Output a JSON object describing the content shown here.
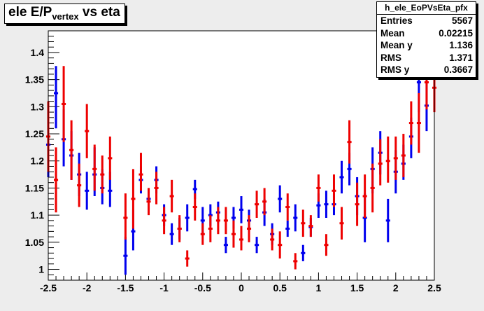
{
  "title": {
    "main": "ele E/P",
    "sub": "vertex",
    "rest": " vs eta"
  },
  "stats": {
    "name": "h_ele_EoPVsEta_pfx",
    "rows": [
      {
        "key": "Entries",
        "value": "5567"
      },
      {
        "key": "Mean",
        "value": "0.02215"
      },
      {
        "key": "Mean y",
        "value": "1.136"
      },
      {
        "key": "RMS",
        "value": "1.371"
      },
      {
        "key": "RMS y",
        "value": "0.3667"
      }
    ]
  },
  "colors": {
    "blue": "#0000ee",
    "red": "#ee0000",
    "frame": "#000000"
  },
  "chart_data": {
    "type": "scatter",
    "xlim": [
      -2.5,
      2.5
    ],
    "ylim": [
      0.98,
      1.44
    ],
    "x_ticks": [
      -2.5,
      -2,
      -1.5,
      -1,
      -0.5,
      0,
      0.5,
      1,
      1.5,
      2,
      2.5
    ],
    "x_tick_labels": [
      "-2.5",
      "-2",
      "-1.5",
      "-1",
      "-0.5",
      "0",
      "0.5",
      "1",
      "1.5",
      "2",
      "2.5"
    ],
    "y_ticks": [
      1,
      1.05,
      1.1,
      1.15,
      1.2,
      1.25,
      1.3,
      1.35,
      1.4
    ],
    "y_tick_labels": [
      "1",
      "1.05",
      "1.1",
      "1.15",
      "1.2",
      "1.25",
      "1.3",
      "1.35",
      "1.4"
    ],
    "bin_width": 0.1,
    "series": [
      {
        "color": "blue",
        "points": [
          {
            "x": -2.5,
            "y": 1.23,
            "lo": 1.17,
            "hi": 1.295
          },
          {
            "x": -2.4,
            "y": 1.325,
            "lo": 1.26,
            "hi": 1.375
          },
          {
            "x": -2.3,
            "y": 1.24,
            "lo": 1.19,
            "hi": 1.295
          },
          {
            "x": -2.2,
            "y": 1.21,
            "lo": 1.165,
            "hi": 1.255
          },
          {
            "x": -2.1,
            "y": 1.175,
            "lo": 1.135,
            "hi": 1.215
          },
          {
            "x": -2.0,
            "y": 1.145,
            "lo": 1.11,
            "hi": 1.18
          },
          {
            "x": -1.9,
            "y": 1.175,
            "lo": 1.135,
            "hi": 1.225
          },
          {
            "x": -1.8,
            "y": 1.15,
            "lo": 1.12,
            "hi": 1.185
          },
          {
            "x": -1.7,
            "y": 1.145,
            "lo": 1.115,
            "hi": 1.18
          },
          {
            "x": -1.5,
            "y": 1.025,
            "lo": 0.99,
            "hi": 1.06
          },
          {
            "x": -1.4,
            "y": 1.07,
            "lo": 1.035,
            "hi": 1.11
          },
          {
            "x": -1.3,
            "y": 1.165,
            "lo": 1.14,
            "hi": 1.19
          },
          {
            "x": -1.2,
            "y": 1.13,
            "lo": 1.11,
            "hi": 1.15
          },
          {
            "x": -1.1,
            "y": 1.165,
            "lo": 1.14,
            "hi": 1.19
          },
          {
            "x": -1.0,
            "y": 1.1,
            "lo": 1.08,
            "hi": 1.12
          },
          {
            "x": -0.9,
            "y": 1.065,
            "lo": 1.045,
            "hi": 1.085
          },
          {
            "x": -0.8,
            "y": 1.075,
            "lo": 1.055,
            "hi": 1.095
          },
          {
            "x": -0.7,
            "y": 1.095,
            "lo": 1.07,
            "hi": 1.12
          },
          {
            "x": -0.6,
            "y": 1.148,
            "lo": 1.13,
            "hi": 1.165
          },
          {
            "x": -0.5,
            "y": 1.09,
            "lo": 1.065,
            "hi": 1.115
          },
          {
            "x": -0.4,
            "y": 1.1,
            "lo": 1.08,
            "hi": 1.12
          },
          {
            "x": -0.3,
            "y": 1.105,
            "lo": 1.085,
            "hi": 1.125
          },
          {
            "x": -0.2,
            "y": 1.045,
            "lo": 1.03,
            "hi": 1.06
          },
          {
            "x": -0.1,
            "y": 1.095,
            "lo": 1.075,
            "hi": 1.115
          },
          {
            "x": 0.0,
            "y": 1.11,
            "lo": 1.085,
            "hi": 1.135
          },
          {
            "x": 0.1,
            "y": 1.09,
            "lo": 1.07,
            "hi": 1.11
          },
          {
            "x": 0.2,
            "y": 1.045,
            "lo": 1.03,
            "hi": 1.06
          },
          {
            "x": 0.3,
            "y": 1.105,
            "lo": 1.08,
            "hi": 1.13
          },
          {
            "x": 0.4,
            "y": 1.065,
            "lo": 1.045,
            "hi": 1.085
          },
          {
            "x": 0.5,
            "y": 1.13,
            "lo": 1.105,
            "hi": 1.155
          },
          {
            "x": 0.6,
            "y": 1.075,
            "lo": 1.06,
            "hi": 1.09
          },
          {
            "x": 0.7,
            "y": 1.095,
            "lo": 1.07,
            "hi": 1.12
          },
          {
            "x": 0.8,
            "y": 1.03,
            "lo": 1.015,
            "hi": 1.045
          },
          {
            "x": 0.9,
            "y": 1.078,
            "lo": 1.06,
            "hi": 1.095
          },
          {
            "x": 1.0,
            "y": 1.118,
            "lo": 1.095,
            "hi": 1.14
          },
          {
            "x": 1.1,
            "y": 1.12,
            "lo": 1.095,
            "hi": 1.145
          },
          {
            "x": 1.2,
            "y": 1.12,
            "lo": 1.1,
            "hi": 1.14
          },
          {
            "x": 1.3,
            "y": 1.17,
            "lo": 1.14,
            "hi": 1.2
          },
          {
            "x": 1.4,
            "y": 1.185,
            "lo": 1.155,
            "hi": 1.215
          },
          {
            "x": 1.5,
            "y": 1.135,
            "lo": 1.1,
            "hi": 1.17
          },
          {
            "x": 1.6,
            "y": 1.095,
            "lo": 1.05,
            "hi": 1.14
          },
          {
            "x": 1.7,
            "y": 1.185,
            "lo": 1.14,
            "hi": 1.225
          },
          {
            "x": 1.8,
            "y": 1.215,
            "lo": 1.175,
            "hi": 1.255
          },
          {
            "x": 1.9,
            "y": 1.09,
            "lo": 1.05,
            "hi": 1.13
          },
          {
            "x": 2.0,
            "y": 1.18,
            "lo": 1.14,
            "hi": 1.22
          },
          {
            "x": 2.1,
            "y": 1.195,
            "lo": 1.165,
            "hi": 1.23
          },
          {
            "x": 2.2,
            "y": 1.245,
            "lo": 1.205,
            "hi": 1.28
          },
          {
            "x": 2.3,
            "y": 1.345,
            "lo": 1.29,
            "hi": 1.4
          },
          {
            "x": 2.4,
            "y": 1.302,
            "lo": 1.255,
            "hi": 1.345
          },
          {
            "x": 2.5,
            "y": 1.355,
            "lo": 1.3,
            "hi": 1.41
          }
        ]
      },
      {
        "color": "red",
        "points": [
          {
            "x": -2.5,
            "y": 1.245,
            "lo": 1.18,
            "hi": 1.31
          },
          {
            "x": -2.4,
            "y": 1.165,
            "lo": 1.105,
            "hi": 1.225
          },
          {
            "x": -2.3,
            "y": 1.305,
            "lo": 1.235,
            "hi": 1.375
          },
          {
            "x": -2.2,
            "y": 1.22,
            "lo": 1.165,
            "hi": 1.275
          },
          {
            "x": -2.1,
            "y": 1.155,
            "lo": 1.115,
            "hi": 1.195
          },
          {
            "x": -2.0,
            "y": 1.255,
            "lo": 1.205,
            "hi": 1.305
          },
          {
            "x": -1.9,
            "y": 1.185,
            "lo": 1.145,
            "hi": 1.23
          },
          {
            "x": -1.8,
            "y": 1.175,
            "lo": 1.14,
            "hi": 1.21
          },
          {
            "x": -1.7,
            "y": 1.205,
            "lo": 1.165,
            "hi": 1.245
          },
          {
            "x": -1.5,
            "y": 1.095,
            "lo": 1.055,
            "hi": 1.14
          },
          {
            "x": -1.4,
            "y": 1.13,
            "lo": 1.075,
            "hi": 1.185
          },
          {
            "x": -1.3,
            "y": 1.175,
            "lo": 1.145,
            "hi": 1.215
          },
          {
            "x": -1.2,
            "y": 1.125,
            "lo": 1.1,
            "hi": 1.15
          },
          {
            "x": -1.1,
            "y": 1.15,
            "lo": 1.12,
            "hi": 1.18
          },
          {
            "x": -1.0,
            "y": 1.09,
            "lo": 1.065,
            "hi": 1.115
          },
          {
            "x": -0.9,
            "y": 1.135,
            "lo": 1.105,
            "hi": 1.165
          },
          {
            "x": -0.8,
            "y": 1.075,
            "lo": 1.05,
            "hi": 1.1
          },
          {
            "x": -0.7,
            "y": 1.02,
            "lo": 1.005,
            "hi": 1.035
          },
          {
            "x": -0.6,
            "y": 1.115,
            "lo": 1.09,
            "hi": 1.14
          },
          {
            "x": -0.5,
            "y": 1.065,
            "lo": 1.045,
            "hi": 1.085
          },
          {
            "x": -0.4,
            "y": 1.075,
            "lo": 1.05,
            "hi": 1.1
          },
          {
            "x": -0.3,
            "y": 1.09,
            "lo": 1.065,
            "hi": 1.115
          },
          {
            "x": -0.2,
            "y": 1.09,
            "lo": 1.065,
            "hi": 1.115
          },
          {
            "x": -0.1,
            "y": 1.065,
            "lo": 1.04,
            "hi": 1.09
          },
          {
            "x": 0.0,
            "y": 1.055,
            "lo": 1.035,
            "hi": 1.08
          },
          {
            "x": 0.1,
            "y": 1.075,
            "lo": 1.05,
            "hi": 1.1
          },
          {
            "x": 0.2,
            "y": 1.12,
            "lo": 1.095,
            "hi": 1.145
          },
          {
            "x": 0.3,
            "y": 1.125,
            "lo": 1.1,
            "hi": 1.15
          },
          {
            "x": 0.4,
            "y": 1.055,
            "lo": 1.035,
            "hi": 1.075
          },
          {
            "x": 0.5,
            "y": 1.045,
            "lo": 1.02,
            "hi": 1.07
          },
          {
            "x": 0.6,
            "y": 1.115,
            "lo": 1.09,
            "hi": 1.14
          },
          {
            "x": 0.7,
            "y": 1.015,
            "lo": 1.0,
            "hi": 1.03
          },
          {
            "x": 0.8,
            "y": 1.085,
            "lo": 1.06,
            "hi": 1.11
          },
          {
            "x": 0.9,
            "y": 1.08,
            "lo": 1.06,
            "hi": 1.1
          },
          {
            "x": 1.0,
            "y": 1.15,
            "lo": 1.125,
            "hi": 1.175
          },
          {
            "x": 1.1,
            "y": 1.045,
            "lo": 1.025,
            "hi": 1.065
          },
          {
            "x": 1.2,
            "y": 1.145,
            "lo": 1.115,
            "hi": 1.175
          },
          {
            "x": 1.3,
            "y": 1.085,
            "lo": 1.055,
            "hi": 1.115
          },
          {
            "x": 1.4,
            "y": 1.235,
            "lo": 1.195,
            "hi": 1.275
          },
          {
            "x": 1.5,
            "y": 1.12,
            "lo": 1.08,
            "hi": 1.16
          },
          {
            "x": 1.6,
            "y": 1.135,
            "lo": 1.095,
            "hi": 1.175
          },
          {
            "x": 1.7,
            "y": 1.15,
            "lo": 1.105,
            "hi": 1.195
          },
          {
            "x": 1.8,
            "y": 1.195,
            "lo": 1.155,
            "hi": 1.24
          },
          {
            "x": 1.9,
            "y": 1.2,
            "lo": 1.16,
            "hi": 1.245
          },
          {
            "x": 2.0,
            "y": 1.205,
            "lo": 1.165,
            "hi": 1.245
          },
          {
            "x": 2.1,
            "y": 1.21,
            "lo": 1.17,
            "hi": 1.25
          },
          {
            "x": 2.2,
            "y": 1.27,
            "lo": 1.23,
            "hi": 1.31
          },
          {
            "x": 2.3,
            "y": 1.27,
            "lo": 1.215,
            "hi": 1.325
          },
          {
            "x": 2.4,
            "y": 1.345,
            "lo": 1.295,
            "hi": 1.4
          },
          {
            "x": 2.5,
            "y": 1.335,
            "lo": 1.29,
            "hi": 1.38
          }
        ]
      }
    ]
  }
}
